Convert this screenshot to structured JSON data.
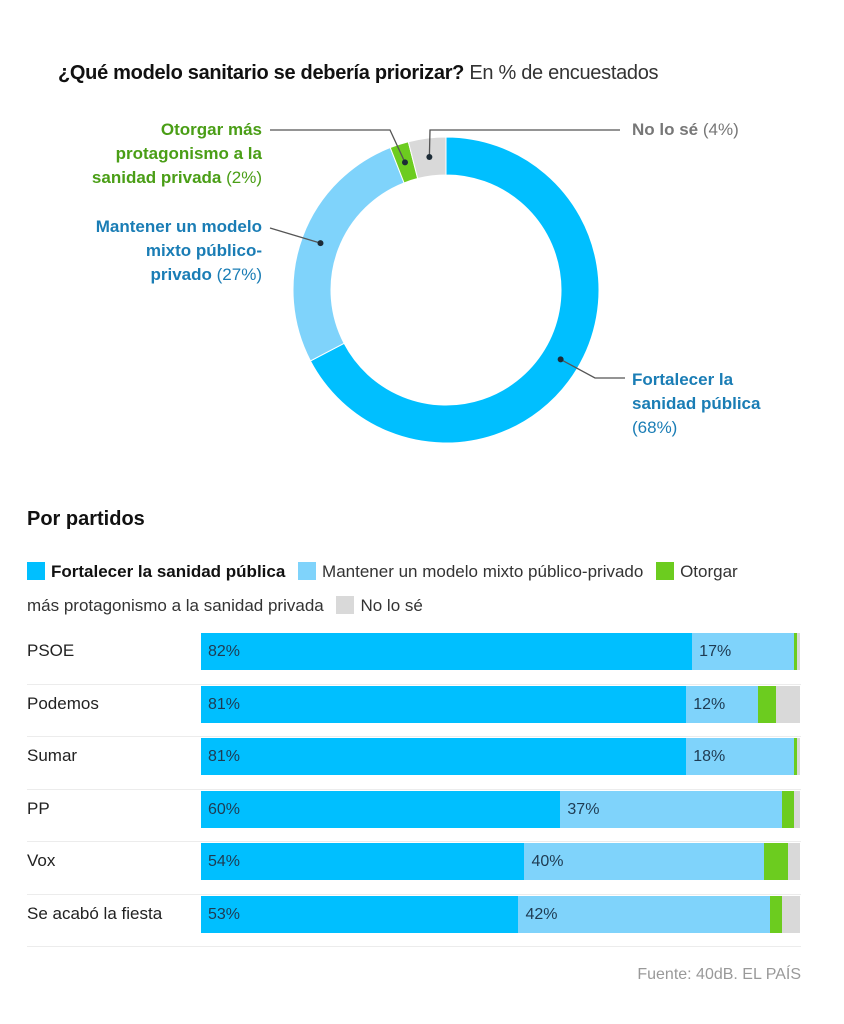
{
  "colors": {
    "publica": "#00bfff",
    "mixto": "#7fd3fb",
    "privada": "#6ccc1f",
    "nose": "#d9d9d9",
    "label_publica": "#1a7db5",
    "label_privada": "#4a9e16",
    "label_nose": "#777777"
  },
  "chart_data": [
    {
      "type": "pie",
      "title": "¿Qué modelo sanitario se debería priorizar?",
      "subtitle": "En % de encuestados",
      "categories": [
        "Fortalecer la sanidad pública",
        "Mantener un modelo mixto público-privado",
        "Otorgar más protagonismo a la sanidad privada",
        "No lo sé"
      ],
      "values": [
        68,
        27,
        2,
        4
      ],
      "labels": {
        "publica": {
          "name": "Fortalecer la sanidad pública",
          "pct": "(68%)"
        },
        "mixto": {
          "name": "Mantener un modelo mixto público-privado",
          "pct": "(27%)"
        },
        "privada": {
          "name": "Otorgar más protagonismo a la sanidad privada",
          "pct": "(2%)"
        },
        "nose": {
          "name": "No lo sé",
          "pct": "(4%)"
        }
      }
    },
    {
      "type": "bar",
      "stacked": true,
      "orientation": "horizontal",
      "title": "Por partidos",
      "categories": [
        "PSOE",
        "Podemos",
        "Sumar",
        "PP",
        "Vox",
        "Se acabó la fiesta"
      ],
      "series": [
        {
          "name": "Fortalecer la sanidad pública",
          "values": [
            82,
            81,
            81,
            60,
            54,
            53
          ]
        },
        {
          "name": "Mantener un modelo mixto público-privado",
          "values": [
            17,
            12,
            18,
            37,
            40,
            42
          ]
        },
        {
          "name": "Otorgar más protagonismo a la sanidad privada",
          "values": [
            0.5,
            3,
            0.5,
            2,
            4,
            2
          ]
        },
        {
          "name": "No lo sé",
          "values": [
            0.5,
            4,
            0.5,
            1,
            2,
            3
          ]
        }
      ],
      "value_labels": [
        [
          "82%",
          "17%"
        ],
        [
          "81%",
          "12%"
        ],
        [
          "81%",
          "18%"
        ],
        [
          "60%",
          "37%"
        ],
        [
          "54%",
          "40%"
        ],
        [
          "53%",
          "42%"
        ]
      ],
      "xlim": [
        0,
        100
      ]
    }
  ],
  "header": {
    "title": "¿Qué modelo sanitario se debería priorizar?",
    "subtitle": "En % de encuestados"
  },
  "donut_labels": {
    "privada_l1": "Otorgar más",
    "privada_l2": "protagonismo a la",
    "privada_l3": "sanidad privada",
    "privada_pct": "(2%)",
    "mixto_l1": "Mantener un modelo",
    "mixto_l2": "mixto público-",
    "mixto_l3": "privado",
    "mixto_pct": "(27%)",
    "nose_name": "No lo sé",
    "nose_pct": "(4%)",
    "publica_l1": "Fortalecer la",
    "publica_l2": "sanidad pública",
    "publica_pct": "(68%)"
  },
  "section": {
    "title": "Por partidos",
    "legend": [
      "Fortalecer la sanidad pública",
      "Mantener un modelo mixto público-privado",
      "Otorgar más protagonismo a la sanidad privada",
      "No lo sé"
    ]
  },
  "source": "Fuente: 40dB. EL PAÍS"
}
